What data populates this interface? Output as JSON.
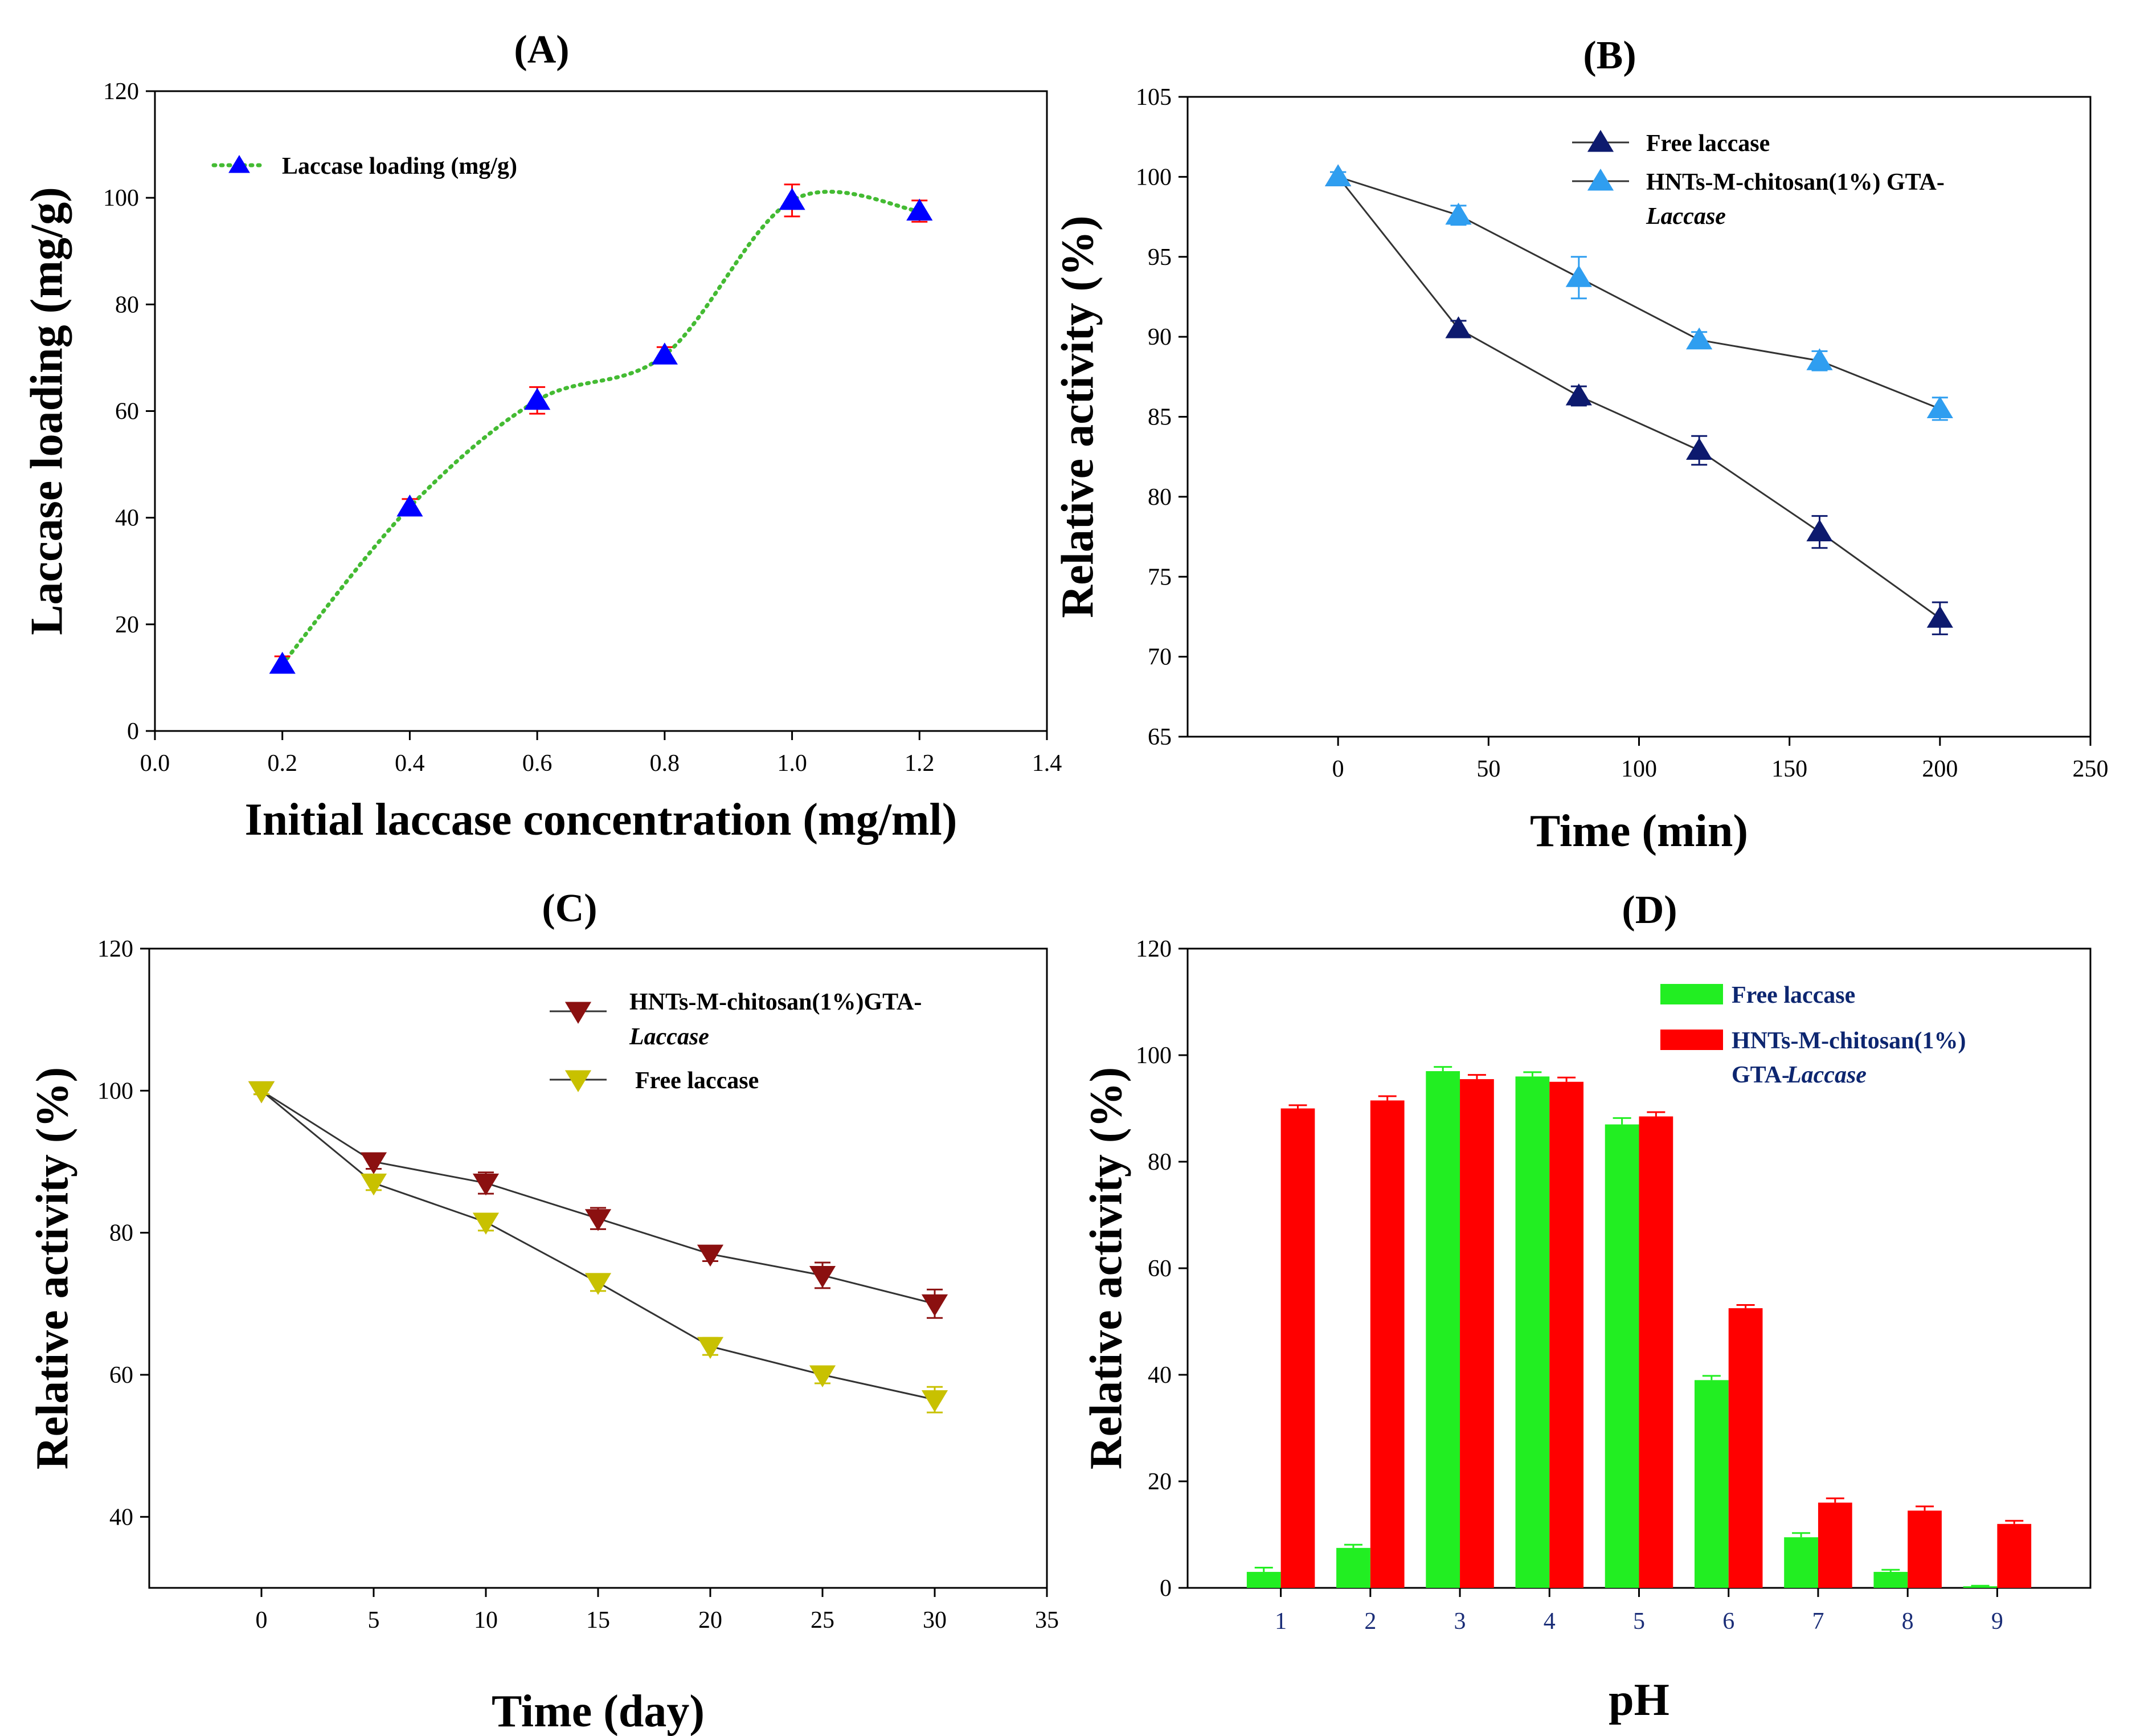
{
  "chart_data": [
    {
      "id": "A",
      "type": "line",
      "title": "(A)",
      "xlabel": "Initial laccase concentration (mg/ml)",
      "ylabel": "Laccase loading (mg/g)",
      "xlim": [
        0.0,
        1.4
      ],
      "ylim": [
        0,
        120
      ],
      "xticks": [
        "0.0",
        "0.2",
        "0.4",
        "0.6",
        "0.8",
        "1.0",
        "1.2",
        "1.4"
      ],
      "yticks": [
        "0",
        "20",
        "40",
        "60",
        "80",
        "100",
        "120"
      ],
      "legend_position": "top-left",
      "series": [
        {
          "name": "Laccase loading (mg/g)",
          "color": "#0000ff",
          "line_color": "#44bb33",
          "line_style": "dotted-smooth",
          "x": [
            0.2,
            0.4,
            0.6,
            0.8,
            1.0,
            1.2
          ],
          "values": [
            12.5,
            42,
            62,
            70.5,
            99.5,
            97.5
          ],
          "errors": [
            1.5,
            1.5,
            2.5,
            1.5,
            3,
            2
          ],
          "error_color": "#ff0000"
        }
      ]
    },
    {
      "id": "B",
      "type": "line",
      "title": "(B)",
      "xlabel": "Time (min)",
      "ylabel": "Relative activity (%)",
      "xlim": [
        -50,
        250
      ],
      "ylim": [
        65,
        105
      ],
      "xticks": [
        "0",
        "50",
        "100",
        "150",
        "200",
        "250"
      ],
      "yticks": [
        "65",
        "70",
        "75",
        "80",
        "85",
        "90",
        "95",
        "100",
        "105"
      ],
      "legend_position": "top-right",
      "series": [
        {
          "name": "Free laccase",
          "color": "#0d1a6e",
          "x": [
            0,
            40,
            80,
            120,
            160,
            200
          ],
          "values": [
            100,
            90.5,
            86.3,
            82.9,
            77.8,
            72.4
          ],
          "errors": [
            0.3,
            0.5,
            0.6,
            0.9,
            1.0,
            1.0
          ]
        },
        {
          "name": "HNTs-M-chitosan(1%) GTA-",
          "name_italic": "Laccase",
          "color": "#2f9ef0",
          "x": [
            0,
            40,
            80,
            120,
            160,
            200
          ],
          "values": [
            100,
            97.6,
            93.7,
            89.8,
            88.5,
            85.5
          ],
          "errors": [
            0.3,
            0.6,
            1.3,
            0.5,
            0.6,
            0.7
          ]
        }
      ]
    },
    {
      "id": "C",
      "type": "line",
      "title": "(C)",
      "xlabel": "Time (day)",
      "ylabel": "Relative activity (%)",
      "xlim": [
        -5,
        35
      ],
      "ylim": [
        30,
        120
      ],
      "xticks": [
        "0",
        "5",
        "10",
        "15",
        "20",
        "25",
        "30",
        "35"
      ],
      "yticks": [
        "40",
        "60",
        "80",
        "100",
        "120"
      ],
      "legend_position": "top-right",
      "series": [
        {
          "name": "HNTs-M-chitosan(1%)GTA-",
          "name_italic": "Laccase",
          "color": "#8b1010",
          "x": [
            0,
            5,
            10,
            15,
            20,
            25,
            30
          ],
          "values": [
            100,
            90,
            87,
            82,
            77,
            74,
            70
          ],
          "errors": [
            0.5,
            1.0,
            1.5,
            1.5,
            1.0,
            1.8,
            2.0
          ]
        },
        {
          "name": "Free laccase",
          "color": "#c8c100",
          "x": [
            0,
            5,
            10,
            15,
            20,
            25,
            30
          ],
          "values": [
            100,
            87,
            81.5,
            73,
            64,
            60,
            56.5
          ],
          "errors": [
            0.5,
            1.0,
            1.2,
            1.2,
            1.2,
            1.2,
            1.8
          ]
        }
      ]
    },
    {
      "id": "D",
      "type": "bar",
      "title": "(D)",
      "xlabel": "pH",
      "ylabel": "Relative activity (%)",
      "ylim": [
        0,
        120
      ],
      "categories": [
        "1",
        "2",
        "3",
        "4",
        "5",
        "6",
        "7",
        "8",
        "9"
      ],
      "yticks": [
        "0",
        "20",
        "40",
        "60",
        "80",
        "100",
        "120"
      ],
      "legend_position": "top-left",
      "series": [
        {
          "name": "Free laccase",
          "color": "#22ee22",
          "values": [
            3,
            7.5,
            97,
            96,
            87,
            39,
            9.5,
            3,
            0.3
          ],
          "errors": [
            0.8,
            0.6,
            0.8,
            0.8,
            1.2,
            0.8,
            0.8,
            0.4,
            0.1
          ]
        },
        {
          "name": "HNTs-M-chitosan(1%)",
          "name_line2": "GTA-",
          "name_italic": "Laccase",
          "color": "#ff0000",
          "values": [
            90,
            91.5,
            95.5,
            95,
            88.5,
            52.5,
            16,
            14.5,
            12
          ],
          "errors": [
            0.6,
            0.8,
            0.8,
            0.8,
            0.8,
            0.6,
            0.8,
            0.8,
            0.6
          ]
        }
      ]
    }
  ]
}
